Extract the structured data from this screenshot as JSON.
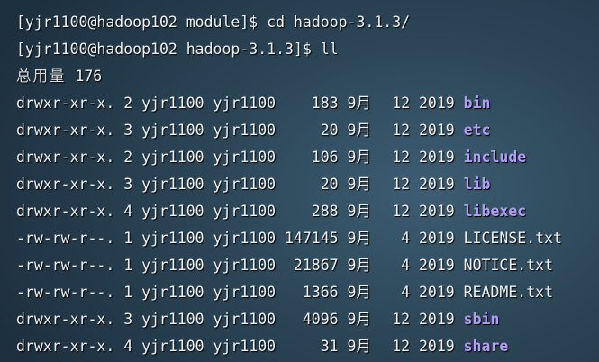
{
  "terminal": {
    "commands": [
      {
        "prompt": "[yjr1100@hadoop102 module]$ ",
        "command": "cd hadoop-3.1.3/"
      },
      {
        "prompt": "[yjr1100@hadoop102 hadoop-3.1.3]$ ",
        "command": "ll"
      }
    ],
    "total_label": "总用量",
    "total_value": "176",
    "dir_color": "#b39cf5",
    "entries": [
      {
        "perm": "drwxr-xr-x.",
        "links": "2",
        "owner": "yjr1100",
        "group": "yjr1100",
        "size": "183",
        "month": "9月",
        "day": "12",
        "year": "2019",
        "name": "bin",
        "type": "dir"
      },
      {
        "perm": "drwxr-xr-x.",
        "links": "3",
        "owner": "yjr1100",
        "group": "yjr1100",
        "size": "20",
        "month": "9月",
        "day": "12",
        "year": "2019",
        "name": "etc",
        "type": "dir"
      },
      {
        "perm": "drwxr-xr-x.",
        "links": "2",
        "owner": "yjr1100",
        "group": "yjr1100",
        "size": "106",
        "month": "9月",
        "day": "12",
        "year": "2019",
        "name": "include",
        "type": "dir"
      },
      {
        "perm": "drwxr-xr-x.",
        "links": "3",
        "owner": "yjr1100",
        "group": "yjr1100",
        "size": "20",
        "month": "9月",
        "day": "12",
        "year": "2019",
        "name": "lib",
        "type": "dir"
      },
      {
        "perm": "drwxr-xr-x.",
        "links": "4",
        "owner": "yjr1100",
        "group": "yjr1100",
        "size": "288",
        "month": "9月",
        "day": "12",
        "year": "2019",
        "name": "libexec",
        "type": "dir"
      },
      {
        "perm": "-rw-rw-r--.",
        "links": "1",
        "owner": "yjr1100",
        "group": "yjr1100",
        "size": "147145",
        "month": "9月",
        "day": "4",
        "year": "2019",
        "name": "LICENSE.txt",
        "type": "file"
      },
      {
        "perm": "-rw-rw-r--.",
        "links": "1",
        "owner": "yjr1100",
        "group": "yjr1100",
        "size": "21867",
        "month": "9月",
        "day": "4",
        "year": "2019",
        "name": "NOTICE.txt",
        "type": "file"
      },
      {
        "perm": "-rw-rw-r--.",
        "links": "1",
        "owner": "yjr1100",
        "group": "yjr1100",
        "size": "1366",
        "month": "9月",
        "day": "4",
        "year": "2019",
        "name": "README.txt",
        "type": "file"
      },
      {
        "perm": "drwxr-xr-x.",
        "links": "3",
        "owner": "yjr1100",
        "group": "yjr1100",
        "size": "4096",
        "month": "9月",
        "day": "12",
        "year": "2019",
        "name": "sbin",
        "type": "dir"
      },
      {
        "perm": "drwxr-xr-x.",
        "links": "4",
        "owner": "yjr1100",
        "group": "yjr1100",
        "size": "31",
        "month": "9月",
        "day": "12",
        "year": "2019",
        "name": "share",
        "type": "dir"
      }
    ]
  }
}
